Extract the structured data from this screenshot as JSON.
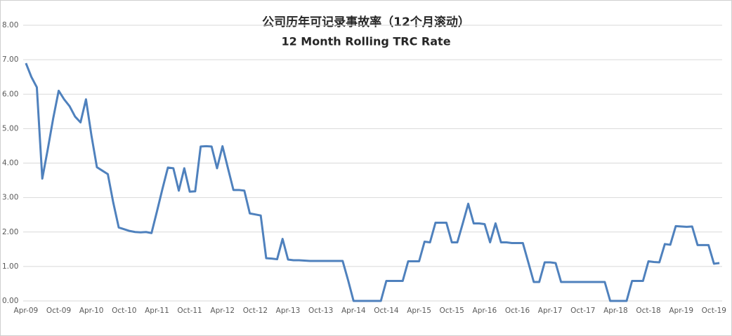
{
  "chart_data": {
    "type": "line",
    "title": "公司历年可记录事故率（12个月滚动）",
    "subtitle": "12 Month Rolling TRC Rate",
    "categories": [
      "Apr-09",
      null,
      null,
      null,
      null,
      null,
      "Oct-09",
      null,
      null,
      null,
      null,
      null,
      "Apr-10",
      null,
      null,
      null,
      null,
      null,
      "Oct-10",
      null,
      null,
      null,
      null,
      null,
      "Apr-11",
      null,
      null,
      null,
      null,
      null,
      "Oct-11",
      null,
      null,
      null,
      null,
      null,
      "Apr-12",
      null,
      null,
      null,
      null,
      null,
      "Oct-12",
      null,
      null,
      null,
      null,
      null,
      "Apr-13",
      null,
      null,
      null,
      null,
      null,
      "Oct-13",
      null,
      null,
      null,
      null,
      null,
      "Apr-14",
      null,
      null,
      null,
      null,
      null,
      "Oct-14",
      null,
      null,
      null,
      null,
      null,
      "Apr-15",
      null,
      null,
      null,
      null,
      null,
      "Oct-15",
      null,
      null,
      null,
      null,
      null,
      "Apr-16",
      null,
      null,
      null,
      null,
      null,
      "Oct-16",
      null,
      null,
      null,
      null,
      null,
      "Apr-17",
      null,
      null,
      null,
      null,
      null,
      "Oct-17",
      null,
      null,
      null,
      null,
      null,
      "Apr-18",
      null,
      null,
      null,
      null,
      null,
      "Oct-18",
      null,
      null,
      null,
      null,
      null,
      "Apr-19",
      null,
      null,
      null,
      null,
      null,
      "Oct-19",
      null
    ],
    "values": [
      6.9,
      6.5,
      6.2,
      3.55,
      4.4,
      5.3,
      6.1,
      5.85,
      5.65,
      5.35,
      5.18,
      5.85,
      4.8,
      3.88,
      3.78,
      3.68,
      2.85,
      2.13,
      2.08,
      2.03,
      2.0,
      1.99,
      2.0,
      1.97,
      2.6,
      3.25,
      3.87,
      3.85,
      3.2,
      3.85,
      3.17,
      3.18,
      4.48,
      4.49,
      4.48,
      3.85,
      4.49,
      3.85,
      3.22,
      3.22,
      3.2,
      2.54,
      2.51,
      2.48,
      1.24,
      1.23,
      1.21,
      1.8,
      1.2,
      1.18,
      1.18,
      1.17,
      1.16,
      1.16,
      1.16,
      1.16,
      1.16,
      1.16,
      1.16,
      0.6,
      0,
      0,
      0,
      0,
      0,
      0,
      0.58,
      0.58,
      0.58,
      0.58,
      1.15,
      1.15,
      1.15,
      1.72,
      1.7,
      2.27,
      2.27,
      2.27,
      1.7,
      1.7,
      2.25,
      2.82,
      2.25,
      2.25,
      2.23,
      1.7,
      2.25,
      1.7,
      1.7,
      1.68,
      1.68,
      1.68,
      1.12,
      0.55,
      0.55,
      1.12,
      1.12,
      1.1,
      0.55,
      0.55,
      0.55,
      0.55,
      0.55,
      0.55,
      0.55,
      0.55,
      0.55,
      0,
      0,
      0,
      0,
      0.58,
      0.58,
      0.58,
      1.15,
      1.13,
      1.12,
      1.65,
      1.63,
      2.17,
      2.16,
      2.15,
      2.16,
      1.62,
      1.62,
      1.62,
      1.08,
      1.1
    ],
    "color": "#4f81bd",
    "ylim": [
      0,
      8
    ],
    "yticks": [
      {
        "value": 0,
        "label": "0.00"
      },
      {
        "value": 1,
        "label": "1.00"
      },
      {
        "value": 2,
        "label": "2.00"
      },
      {
        "value": 3,
        "label": "3.00"
      },
      {
        "value": 4,
        "label": "4.00"
      },
      {
        "value": 5,
        "label": "5.00"
      },
      {
        "value": 6,
        "label": "6.00"
      },
      {
        "value": 7,
        "label": "7.00"
      },
      {
        "value": 8,
        "label": "8.00"
      }
    ],
    "grid": true
  }
}
